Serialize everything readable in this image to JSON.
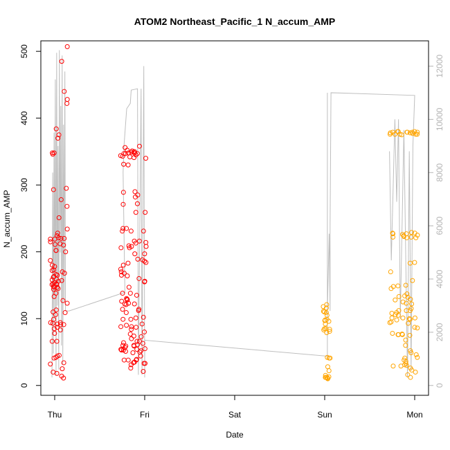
{
  "chart_data": {
    "type": "scatter",
    "title": "ATOM2 Northeast_Pacific_1 N_accum_AMP",
    "xlabel": "Date",
    "ylabel": "N_accum_AMP",
    "ylim": [
      0,
      510
    ],
    "y2lim": [
      0,
      12800
    ],
    "x_ticks": [
      {
        "label": "Thu",
        "value": 0
      },
      {
        "label": "Fri",
        "value": 1
      },
      {
        "label": "Sat",
        "value": 2
      },
      {
        "label": "Sun",
        "value": 3
      },
      {
        "label": "Mon",
        "value": 4
      }
    ],
    "y_ticks": [
      0,
      100,
      200,
      300,
      400,
      500
    ],
    "y2_ticks": [
      0,
      2000,
      4000,
      6000,
      8000,
      10000,
      12000
    ],
    "colors": {
      "red": "#ff0000",
      "orange": "#ffa500",
      "line": "#bebebe"
    },
    "series": [],
    "line_series": []
  }
}
